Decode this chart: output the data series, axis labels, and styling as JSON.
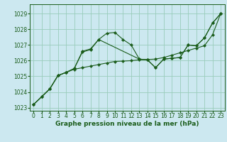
{
  "title": "Graphe pression niveau de la mer (hPa)",
  "bg_color": "#cce8f0",
  "grid_color": "#99ccbb",
  "line_color": "#1a5c1a",
  "marker_color": "#1a5c1a",
  "xlim": [
    -0.5,
    23.5
  ],
  "ylim": [
    1022.8,
    1029.6
  ],
  "yticks": [
    1023,
    1024,
    1025,
    1026,
    1027,
    1028,
    1029
  ],
  "xticks": [
    0,
    1,
    2,
    3,
    4,
    5,
    6,
    7,
    8,
    9,
    10,
    11,
    12,
    13,
    14,
    15,
    16,
    17,
    18,
    19,
    20,
    21,
    22,
    23
  ],
  "series1_x": [
    0,
    1,
    2,
    3,
    4,
    5,
    6,
    7,
    8,
    9,
    10,
    11,
    12,
    13,
    14,
    15,
    16,
    17,
    18,
    19,
    20,
    21,
    22,
    23
  ],
  "series1_y": [
    1023.2,
    1023.7,
    1024.2,
    1025.05,
    1025.25,
    1025.45,
    1025.55,
    1025.65,
    1025.75,
    1025.85,
    1025.95,
    1025.97,
    1026.0,
    1026.05,
    1026.07,
    1026.1,
    1026.2,
    1026.35,
    1026.5,
    1026.65,
    1026.8,
    1026.95,
    1027.65,
    1029.0
  ],
  "series2_x": [
    0,
    1,
    2,
    3,
    4,
    5,
    6,
    7,
    8,
    9,
    10,
    11,
    12,
    13,
    14,
    15,
    16,
    17,
    18,
    19,
    20,
    21,
    22,
    23
  ],
  "series2_y": [
    1023.2,
    1023.7,
    1024.2,
    1025.05,
    1025.25,
    1025.5,
    1026.6,
    1026.75,
    1027.35,
    1027.75,
    1027.8,
    1027.35,
    1027.0,
    1026.1,
    1026.05,
    1025.55,
    1026.1,
    1026.15,
    1026.2,
    1027.0,
    1026.95,
    1027.45,
    1028.4,
    1029.0
  ],
  "series3_x": [
    0,
    1,
    2,
    3,
    4,
    5,
    6,
    7,
    8,
    13,
    14,
    15,
    16,
    17,
    18,
    19,
    20,
    21,
    22,
    23
  ],
  "series3_y": [
    1023.2,
    1023.7,
    1024.2,
    1025.05,
    1025.25,
    1025.5,
    1026.55,
    1026.7,
    1027.35,
    1026.1,
    1026.05,
    1025.55,
    1026.1,
    1026.15,
    1026.2,
    1027.0,
    1026.95,
    1027.45,
    1028.4,
    1029.0
  ],
  "label_fontsize": 6.5,
  "tick_fontsize": 5.5,
  "ylabel_fontsize": 5.5
}
